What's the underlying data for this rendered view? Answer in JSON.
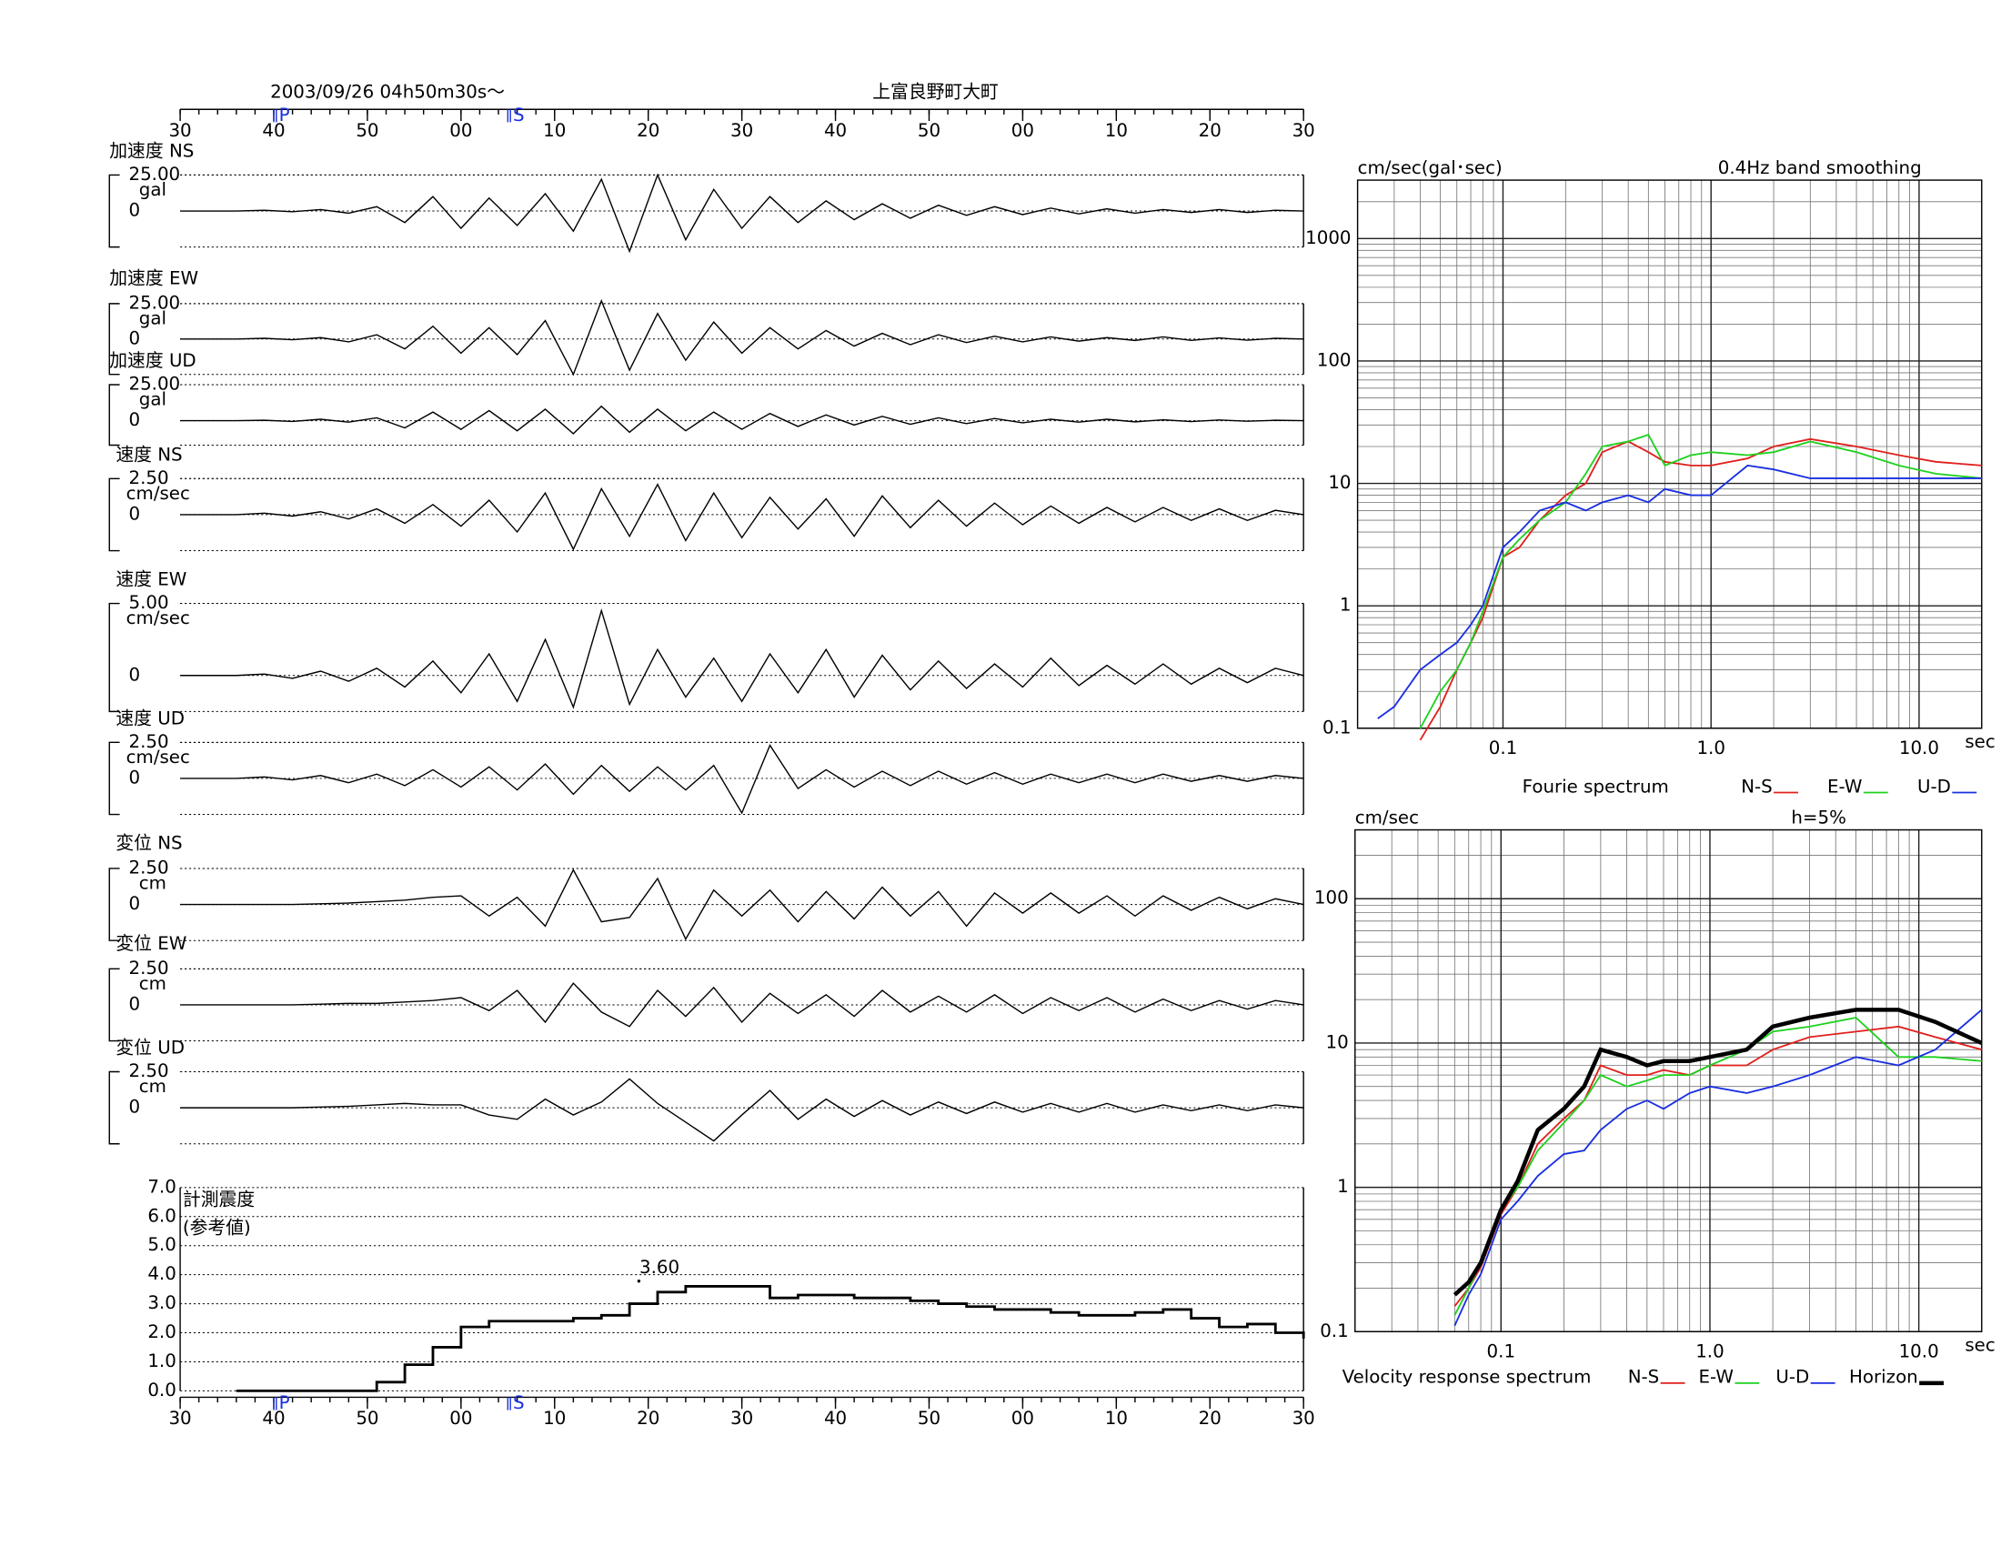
{
  "chart_data": [
    {
      "type": "waveform",
      "date_label": "2003/09/26  04h50m30s〜",
      "station": "上富良野町大町",
      "x": [
        0,
        3,
        6,
        9,
        12,
        15,
        18,
        21,
        24,
        27,
        30,
        33,
        36,
        39,
        42,
        45,
        48,
        51,
        54,
        57,
        60,
        63,
        66,
        69,
        72,
        75,
        78,
        81,
        84,
        87,
        90,
        93,
        96,
        99,
        102,
        105,
        108,
        111,
        114,
        117,
        120
      ],
      "xlim": [
        0,
        120
      ],
      "xticks": [
        {
          "value": 0,
          "label": "30"
        },
        {
          "value": 10,
          "label": "40"
        },
        {
          "value": 20,
          "label": "50"
        },
        {
          "value": 30,
          "label": "00"
        },
        {
          "value": 40,
          "label": "10"
        },
        {
          "value": 50,
          "label": "20"
        },
        {
          "value": 60,
          "label": "30"
        },
        {
          "value": 70,
          "label": "40"
        },
        {
          "value": 80,
          "label": "50"
        },
        {
          "value": 90,
          "label": "00"
        },
        {
          "value": 100,
          "label": "10"
        },
        {
          "value": 110,
          "label": "20"
        },
        {
          "value": 120,
          "label": "30"
        }
      ],
      "phase_marks": [
        {
          "value": 10,
          "label": "P"
        },
        {
          "value": 35,
          "label": "S"
        }
      ],
      "panels": [
        {
          "title": "加速度 NS",
          "unit": "gal",
          "ylim": [
            -25,
            25
          ],
          "yticks": [
            0,
            {
              "value": 25,
              "label": "25.00"
            }
          ],
          "values": [
            0,
            0,
            0,
            0.5,
            -0.5,
            1,
            -1.5,
            3,
            -8,
            10,
            -12,
            9,
            -10,
            12,
            -14,
            22,
            -28,
            25,
            -20,
            15,
            -12,
            10,
            -8,
            7,
            -6,
            5,
            -5,
            4,
            -3,
            3,
            -2.5,
            2,
            -2,
            1.5,
            -1.5,
            1,
            -1,
            1,
            -1,
            0.5,
            0
          ]
        },
        {
          "title": "加速度 EW",
          "unit": "gal",
          "ylim": [
            -25,
            25
          ],
          "yticks": [
            0,
            {
              "value": 25,
              "label": "25.00"
            }
          ],
          "values": [
            0,
            0,
            0,
            0.5,
            -0.5,
            1,
            -2,
            3,
            -7,
            9,
            -10,
            8,
            -11,
            13,
            -25,
            27,
            -22,
            18,
            -15,
            12,
            -10,
            8,
            -7,
            6,
            -5,
            4,
            -4,
            3,
            -2.5,
            2,
            -2,
            1.5,
            -1.5,
            1,
            -1,
            1.5,
            -1,
            0.8,
            -0.8,
            0.5,
            0
          ]
        },
        {
          "title": "加速度 UD",
          "unit": "gal",
          "ylim": [
            -17,
            25
          ],
          "yticks": [
            0,
            {
              "value": 25,
              "label": "25.00"
            }
          ],
          "values": [
            0,
            0,
            0,
            0.3,
            -0.5,
            1,
            -1,
            2,
            -5,
            6,
            -6,
            7,
            -7,
            8,
            -9,
            10,
            -8,
            8,
            -7,
            6,
            -6,
            5,
            -4,
            4,
            -3,
            3,
            -2.5,
            2,
            -2,
            1.5,
            -1.5,
            1,
            -1,
            1,
            -0.8,
            0.6,
            -0.6,
            0.5,
            -0.4,
            0.3,
            0
          ]
        },
        {
          "title": "速度 NS",
          "unit": "cm/sec",
          "ylim": [
            -2.5,
            2.5
          ],
          "yticks": [
            0,
            {
              "value": 2.5,
              "label": "2.50"
            }
          ],
          "values": [
            0,
            0,
            0,
            0.1,
            -0.1,
            0.2,
            -0.3,
            0.4,
            -0.6,
            0.7,
            -0.8,
            1,
            -1.2,
            1.5,
            -2.4,
            1.8,
            -1.5,
            2.1,
            -1.8,
            1.5,
            -1.6,
            1.2,
            -1,
            1.1,
            -1.5,
            1.3,
            -0.9,
            1,
            -0.8,
            0.8,
            -0.7,
            0.6,
            -0.6,
            0.5,
            -0.5,
            0.5,
            -0.4,
            0.4,
            -0.4,
            0.3,
            0
          ]
        },
        {
          "title": "速度 EW",
          "unit": "cm/sec",
          "ylim": [
            -2.5,
            5
          ],
          "yticks": [
            0,
            {
              "value": 5,
              "label": "5.00"
            }
          ],
          "values": [
            0,
            0,
            0,
            0.1,
            -0.2,
            0.3,
            -0.4,
            0.5,
            -0.8,
            1,
            -1.2,
            1.5,
            -1.8,
            2.5,
            -2.2,
            4.5,
            -2,
            1.8,
            -1.5,
            1.2,
            -1.8,
            1.5,
            -1.2,
            1.8,
            -1.5,
            1.4,
            -1,
            1,
            -0.9,
            0.8,
            -0.8,
            1.2,
            -0.7,
            0.7,
            -0.6,
            0.8,
            -0.6,
            0.5,
            -0.5,
            0.5,
            0
          ]
        },
        {
          "title": "速度 UD",
          "unit": "cm/sec",
          "ylim": [
            -2.5,
            2.5
          ],
          "yticks": [
            0,
            {
              "value": 2.5,
              "label": "2.50"
            }
          ],
          "values": [
            0,
            0,
            0,
            0.1,
            -0.1,
            0.2,
            -0.3,
            0.3,
            -0.5,
            0.6,
            -0.6,
            0.8,
            -0.8,
            1,
            -1.1,
            0.9,
            -0.9,
            0.8,
            -0.8,
            0.9,
            -2.4,
            2.3,
            -0.7,
            0.6,
            -0.6,
            0.5,
            -0.5,
            0.5,
            -0.4,
            0.4,
            -0.4,
            0.3,
            -0.3,
            0.3,
            -0.3,
            0.3,
            -0.2,
            0.2,
            -0.2,
            0.2,
            0
          ]
        },
        {
          "title": "変位 NS",
          "unit": "cm",
          "ylim": [
            -2.5,
            2.5
          ],
          "yticks": [
            0,
            {
              "value": 2.5,
              "label": "2.50"
            }
          ],
          "values": [
            0,
            0,
            0,
            0,
            0,
            0.05,
            0.1,
            0.2,
            0.3,
            0.5,
            0.6,
            -0.8,
            0.5,
            -1.5,
            2.4,
            -1.2,
            -0.9,
            1.8,
            -2.4,
            1,
            -0.8,
            1,
            -1.2,
            0.9,
            -1,
            1.2,
            -0.8,
            0.9,
            -1.5,
            0.8,
            -0.6,
            0.8,
            -0.6,
            0.6,
            -0.8,
            0.6,
            -0.4,
            0.5,
            -0.3,
            0.4,
            0
          ]
        },
        {
          "title": "変位 EW",
          "unit": "cm",
          "ylim": [
            -2.5,
            2.5
          ],
          "yticks": [
            0,
            {
              "value": 2.5,
              "label": "2.50"
            }
          ],
          "values": [
            0,
            0,
            0,
            0,
            0,
            0.05,
            0.1,
            0.1,
            0.2,
            0.3,
            0.5,
            -0.4,
            1,
            -1.2,
            1.5,
            -0.5,
            -1.5,
            1,
            -0.8,
            1.2,
            -1.2,
            0.8,
            -0.6,
            0.7,
            -0.8,
            1,
            -0.5,
            0.6,
            -0.5,
            0.7,
            -0.6,
            0.5,
            -0.4,
            0.5,
            -0.5,
            0.4,
            -0.4,
            0.3,
            -0.3,
            0.3,
            0
          ]
        },
        {
          "title": "変位 UD",
          "unit": "cm",
          "ylim": [
            -2.5,
            2.5
          ],
          "yticks": [
            0,
            {
              "value": 2.5,
              "label": "2.50"
            }
          ],
          "values": [
            0,
            0,
            0,
            0,
            0,
            0.05,
            0.1,
            0.2,
            0.3,
            0.2,
            0.2,
            -0.5,
            -0.8,
            0.6,
            -0.5,
            0.4,
            2,
            0.3,
            -1,
            -2.3,
            -0.5,
            1.2,
            -0.8,
            0.6,
            -0.6,
            0.5,
            -0.5,
            0.4,
            -0.4,
            0.4,
            -0.3,
            0.3,
            -0.3,
            0.3,
            -0.3,
            0.2,
            -0.2,
            0.2,
            -0.2,
            0.2,
            0
          ]
        }
      ]
    },
    {
      "type": "step",
      "title": "計測震度",
      "subtitle": "(参考値)",
      "color": "#000000",
      "x": [
        0,
        3,
        6,
        9,
        12,
        15,
        18,
        21,
        24,
        27,
        30,
        33,
        36,
        39,
        42,
        45,
        48,
        51,
        54,
        57,
        60,
        63,
        66,
        69,
        72,
        75,
        78,
        81,
        84,
        87,
        90,
        93,
        96,
        99,
        102,
        105,
        108,
        111,
        114,
        117,
        120
      ],
      "values": [
        null,
        null,
        0,
        0,
        0,
        0,
        0,
        0.3,
        0.9,
        1.5,
        2.2,
        2.4,
        2.4,
        2.4,
        2.5,
        2.6,
        3.0,
        3.4,
        3.6,
        3.6,
        3.6,
        3.2,
        3.3,
        3.3,
        3.2,
        3.2,
        3.1,
        3.0,
        2.9,
        2.8,
        2.8,
        2.7,
        2.6,
        2.6,
        2.7,
        2.8,
        2.5,
        2.2,
        2.3,
        2.0,
        1.8
      ],
      "xlim": [
        0,
        120
      ],
      "xticks": [
        {
          "value": 0,
          "label": "30"
        },
        {
          "value": 10,
          "label": "40"
        },
        {
          "value": 20,
          "label": "50"
        },
        {
          "value": 30,
          "label": "00"
        },
        {
          "value": 40,
          "label": "10"
        },
        {
          "value": 50,
          "label": "20"
        },
        {
          "value": 60,
          "label": "30"
        },
        {
          "value": 70,
          "label": "40"
        },
        {
          "value": 80,
          "label": "50"
        },
        {
          "value": 90,
          "label": "00"
        },
        {
          "value": 100,
          "label": "10"
        },
        {
          "value": 110,
          "label": "20"
        },
        {
          "value": 120,
          "label": "30"
        }
      ],
      "phase_marks": [
        {
          "value": 10,
          "label": "P"
        },
        {
          "value": 35,
          "label": "S"
        }
      ],
      "ylim": [
        0,
        7
      ],
      "yticks": [
        {
          "value": 0,
          "label": "0.0"
        },
        {
          "value": 1,
          "label": "1.0"
        },
        {
          "value": 2,
          "label": "2.0"
        },
        {
          "value": 3,
          "label": "3.0"
        },
        {
          "value": 4,
          "label": "4.0"
        },
        {
          "value": 5,
          "label": "5.0"
        },
        {
          "value": 6,
          "label": "6.0"
        },
        {
          "value": 7,
          "label": "7.0"
        }
      ],
      "annotations": [
        {
          "x": 49,
          "y": 3.6,
          "label": "3.60"
        }
      ]
    },
    {
      "type": "loglog",
      "title": "Fourie spectrum",
      "ylabel": "cm/sec(gal･sec)",
      "note": "0.4Hz band smoothing",
      "xlabel": "sec",
      "log": true,
      "grid": true,
      "x": [
        0.025,
        0.03,
        0.04,
        0.05,
        0.06,
        0.07,
        0.08,
        0.1,
        0.12,
        0.15,
        0.2,
        0.25,
        0.3,
        0.4,
        0.5,
        0.6,
        0.8,
        1.0,
        1.5,
        2,
        3,
        5,
        8,
        12,
        20
      ],
      "xlim": [
        0.02,
        20
      ],
      "ylim": [
        0.1,
        3000
      ],
      "xticks": [
        0.1,
        {
          "value": 1,
          "label": "1.0"
        },
        {
          "value": 10,
          "label": "10.0"
        }
      ],
      "yticks": [
        0.1,
        1,
        10,
        100,
        1000
      ],
      "series": [
        {
          "name": "N-S",
          "color": "#e0201c",
          "values": [
            null,
            null,
            0.08,
            0.15,
            0.3,
            0.5,
            0.8,
            2.5,
            3,
            5,
            8,
            10,
            18,
            22,
            18,
            15,
            14,
            14,
            16,
            20,
            23,
            20,
            17,
            15,
            14
          ]
        },
        {
          "name": "E-W",
          "color": "#1fd11f",
          "values": [
            null,
            null,
            0.1,
            0.2,
            0.3,
            0.5,
            0.9,
            2.5,
            3.5,
            5,
            7,
            12,
            20,
            22,
            25,
            14,
            17,
            18,
            17,
            18,
            22,
            18,
            14,
            12,
            11
          ]
        },
        {
          "name": "U-D",
          "color": "#1a2fe0",
          "values": [
            0.12,
            0.15,
            0.3,
            0.4,
            0.5,
            0.7,
            1,
            3,
            4,
            6,
            7,
            6,
            7,
            8,
            7,
            9,
            8,
            8,
            14,
            13,
            11,
            11,
            11,
            11,
            11
          ]
        }
      ]
    },
    {
      "type": "loglog",
      "title": "Velocity response spectrum",
      "ylabel": "cm/sec",
      "note": "h=5%",
      "xlabel": "sec",
      "log": true,
      "grid": true,
      "x": [
        0.06,
        0.07,
        0.08,
        0.1,
        0.12,
        0.15,
        0.2,
        0.25,
        0.3,
        0.4,
        0.5,
        0.6,
        0.8,
        1.0,
        1.5,
        2,
        3,
        5,
        8,
        12,
        20
      ],
      "xlim": [
        0.02,
        20
      ],
      "ylim": [
        0.1,
        300
      ],
      "xticks": [
        0.1,
        {
          "value": 1,
          "label": "1.0"
        },
        {
          "value": 10,
          "label": "10.0"
        }
      ],
      "yticks": [
        0.1,
        1,
        10,
        100
      ],
      "series": [
        {
          "name": "N-S",
          "color": "#e0201c",
          "values": [
            0.15,
            0.2,
            0.28,
            0.65,
            1,
            2,
            3,
            4,
            7,
            6,
            6,
            6.5,
            6,
            7,
            7,
            9,
            11,
            12,
            13,
            11,
            9
          ]
        },
        {
          "name": "E-W",
          "color": "#1fd11f",
          "values": [
            0.13,
            0.2,
            0.3,
            0.7,
            1,
            1.8,
            2.8,
            4,
            6,
            5,
            5.5,
            6,
            6,
            7,
            9,
            12,
            13,
            15,
            8,
            8,
            7.5
          ]
        },
        {
          "name": "U-D",
          "color": "#1a2fe0",
          "values": [
            0.11,
            0.18,
            0.25,
            0.6,
            0.8,
            1.2,
            1.7,
            1.8,
            2.5,
            3.5,
            4,
            3.5,
            4.5,
            5,
            4.5,
            5,
            6,
            8,
            7,
            9,
            17
          ]
        },
        {
          "name": "Horizon",
          "color": "#000000",
          "values": [
            0.18,
            0.22,
            0.3,
            0.7,
            1.1,
            2.5,
            3.5,
            5,
            9,
            8,
            7,
            7.5,
            7.5,
            8,
            9,
            13,
            15,
            17,
            17,
            14,
            10
          ]
        }
      ]
    }
  ]
}
